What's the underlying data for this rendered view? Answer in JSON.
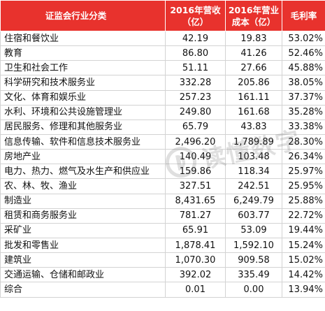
{
  "table": {
    "headers": {
      "category": "证监会行业分类",
      "revenue_line1": "2016年营收",
      "revenue_line2": "（亿）",
      "cost_line1": "2016年营业",
      "cost_line2": "成本（亿）",
      "margin": "毛利率"
    },
    "rows": [
      {
        "category": "住宿和餐饮业",
        "revenue": "42.19",
        "cost": "19.83",
        "margin": "53.02%"
      },
      {
        "category": "教育",
        "revenue": "86.80",
        "cost": "41.26",
        "margin": "52.46%"
      },
      {
        "category": "卫生和社会工作",
        "revenue": "51.11",
        "cost": "27.66",
        "margin": "45.88%"
      },
      {
        "category": "科学研究和技术服务业",
        "revenue": "332.28",
        "cost": "205.86",
        "margin": "38.05%"
      },
      {
        "category": "文化、体育和娱乐业",
        "revenue": "257.23",
        "cost": "161.11",
        "margin": "37.37%"
      },
      {
        "category": "水利、环境和公共设施管理业",
        "revenue": "249.80",
        "cost": "161.68",
        "margin": "35.28%"
      },
      {
        "category": "居民服务、修理和其他服务业",
        "revenue": "65.79",
        "cost": "43.83",
        "margin": "33.38%"
      },
      {
        "category": "信息传输、软件和信息技术服务业",
        "revenue": "2,496.20",
        "cost": "1,789.89",
        "margin": "28.30%"
      },
      {
        "category": "房地产业",
        "revenue": "140.49",
        "cost": "103.48",
        "margin": "26.34%"
      },
      {
        "category": "电力、热力、燃气及水生产和供应业",
        "revenue": "159.86",
        "cost": "118.34",
        "margin": "25.97%"
      },
      {
        "category": "农、林、牧、渔业",
        "revenue": "327.51",
        "cost": "242.51",
        "margin": "25.95%"
      },
      {
        "category": "制造业",
        "revenue": "8,431.65",
        "cost": "6,249.79",
        "margin": "25.88%"
      },
      {
        "category": "租赁和商务服务业",
        "revenue": "781.27",
        "cost": "603.77",
        "margin": "22.72%"
      },
      {
        "category": "采矿业",
        "revenue": "65.91",
        "cost": "53.09",
        "margin": "19.44%"
      },
      {
        "category": "批发和零售业",
        "revenue": "1,878.41",
        "cost": "1,592.10",
        "margin": "15.24%"
      },
      {
        "category": "建筑业",
        "revenue": "1,070.30",
        "cost": "909.58",
        "margin": "15.02%"
      },
      {
        "category": "交通运输、仓储和邮政业",
        "revenue": "392.02",
        "cost": "335.49",
        "margin": "14.42%"
      },
      {
        "category": "综合",
        "revenue": "0.01",
        "cost": "0.00",
        "margin": "13.94%"
      }
    ]
  },
  "watermark": {
    "text": "读懂数字"
  },
  "colors": {
    "header_background": "#e8322d",
    "header_text": "#ffffff",
    "grid_line": "#d3d3d3"
  }
}
